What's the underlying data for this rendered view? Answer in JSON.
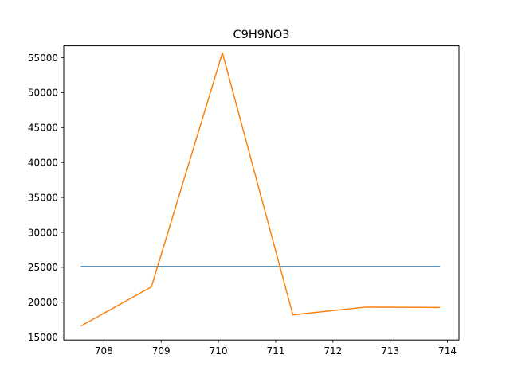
{
  "chart_data": {
    "type": "line",
    "title": "C9H9NO3",
    "xlabel": "",
    "ylabel": "",
    "xlim": [
      707.3,
      714.2
    ],
    "ylim": [
      14600,
      56700
    ],
    "xticks": [
      708,
      709,
      710,
      711,
      712,
      713,
      714
    ],
    "yticks": [
      15000,
      20000,
      25000,
      30000,
      35000,
      40000,
      45000,
      50000,
      55000
    ],
    "grid": false,
    "legend": "none",
    "series": [
      {
        "color": "#1f77b4",
        "x": [
          707.6,
          713.87
        ],
        "y": [
          25100,
          25100
        ]
      },
      {
        "color": "#ff7f0e",
        "x": [
          707.6,
          708.83,
          710.07,
          711.3,
          712.57,
          713.87
        ],
        "y": [
          16600,
          22200,
          55700,
          18200,
          19300,
          19250
        ]
      }
    ]
  }
}
